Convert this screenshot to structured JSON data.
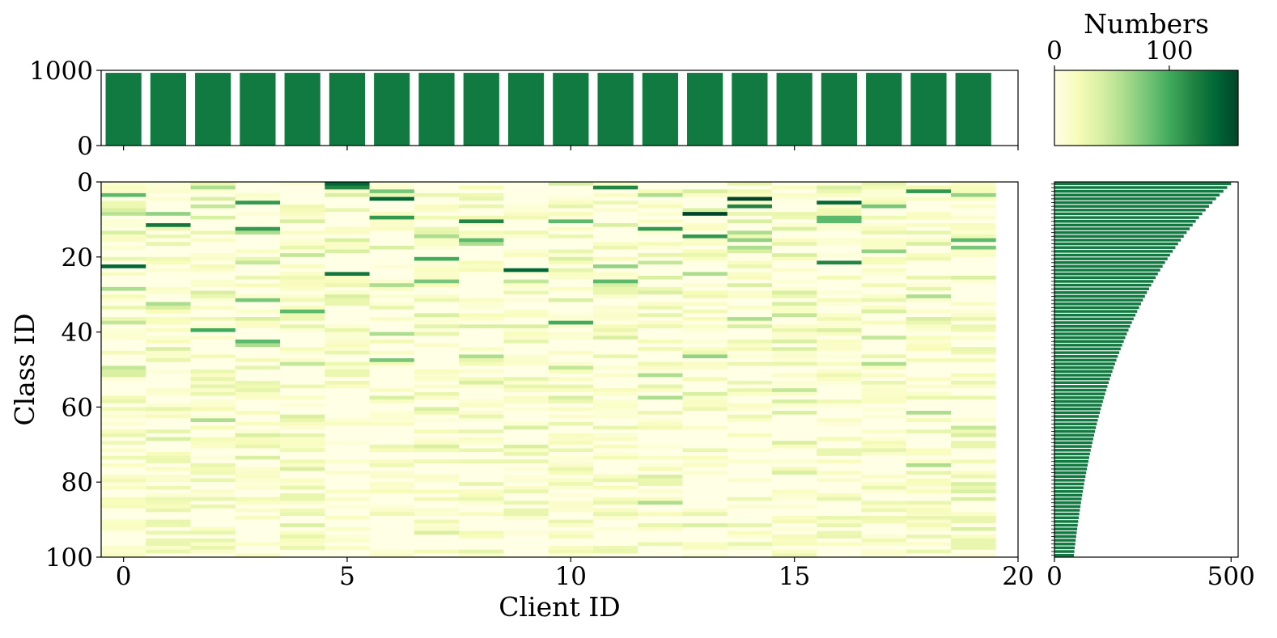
{
  "chart_data": [
    {
      "type": "bar",
      "role": "top-marginal",
      "categories": [
        0,
        1,
        2,
        3,
        4,
        5,
        6,
        7,
        8,
        9,
        10,
        11,
        12,
        13,
        14,
        15,
        16,
        17,
        18,
        19
      ],
      "values": [
        967,
        967,
        967,
        967,
        967,
        967,
        967,
        967,
        967,
        967,
        967,
        967,
        967,
        967,
        967,
        967,
        967,
        967,
        967,
        967
      ],
      "ylim": [
        0,
        1000
      ],
      "yticks": [
        0,
        1000
      ],
      "xlim": [
        -0.5,
        20
      ],
      "color": "#117a41"
    },
    {
      "type": "heatmap",
      "role": "main",
      "xlabel": "Client ID",
      "ylabel": "Class ID",
      "xticks": [
        0,
        5,
        10,
        15,
        20
      ],
      "yticks": [
        0,
        20,
        40,
        60,
        80,
        100
      ],
      "xlim": [
        -0.5,
        20
      ],
      "ylim": [
        100,
        0
      ],
      "n_clients": 20,
      "n_classes": 100,
      "colormap": "YlGn",
      "vmax": 160,
      "highlights": [
        {
          "client": 0,
          "classes": [
            3,
            7,
            8,
            13,
            22,
            28,
            37,
            49,
            50,
            51,
            58,
            67
          ],
          "values": [
            90,
            40,
            55,
            40,
            140,
            60,
            50,
            50,
            40,
            40,
            30,
            30
          ]
        },
        {
          "client": 1,
          "classes": [
            8,
            11,
            16,
            20,
            32,
            33,
            44,
            47,
            68,
            87,
            90,
            93,
            96,
            98
          ],
          "values": [
            70,
            130,
            30,
            25,
            60,
            40,
            40,
            30,
            40,
            30,
            30,
            30,
            30,
            30
          ]
        },
        {
          "client": 2,
          "classes": [
            1,
            4,
            6,
            9,
            13,
            29,
            39,
            52,
            56,
            63,
            75,
            79,
            84,
            86,
            93,
            95,
            97
          ],
          "values": [
            60,
            40,
            50,
            40,
            30,
            40,
            100,
            30,
            30,
            60,
            30,
            30,
            30,
            30,
            30,
            30,
            30
          ]
        },
        {
          "client": 3,
          "classes": [
            5,
            12,
            13,
            21,
            31,
            36,
            42,
            43,
            53,
            67,
            70,
            73
          ],
          "values": [
            110,
            110,
            60,
            50,
            80,
            40,
            90,
            60,
            30,
            40,
            30,
            40
          ]
        },
        {
          "client": 4,
          "classes": [
            10,
            17,
            19,
            34,
            48,
            62,
            76,
            81,
            84,
            88,
            91,
            94,
            97
          ],
          "values": [
            40,
            30,
            50,
            90,
            50,
            40,
            40,
            30,
            30,
            30,
            40,
            30,
            30
          ]
        },
        {
          "client": 5,
          "classes": [
            0,
            1,
            3,
            7,
            15,
            18,
            24,
            30,
            32,
            39,
            45
          ],
          "values": [
            140,
            120,
            40,
            30,
            40,
            40,
            130,
            40,
            30,
            30,
            30
          ]
        },
        {
          "client": 6,
          "classes": [
            2,
            4,
            9,
            17,
            27,
            33,
            40,
            47,
            57
          ],
          "values": [
            80,
            140,
            110,
            40,
            60,
            30,
            60,
            80,
            40
          ]
        },
        {
          "client": 7,
          "classes": [
            3,
            14,
            20,
            26,
            35,
            56,
            60,
            70,
            93
          ],
          "values": [
            30,
            60,
            100,
            80,
            40,
            30,
            40,
            40,
            40
          ]
        },
        {
          "client": 8,
          "classes": [
            6,
            10,
            15,
            16,
            38,
            46,
            53,
            66,
            71
          ],
          "values": [
            30,
            120,
            90,
            60,
            40,
            60,
            40,
            30,
            30
          ]
        },
        {
          "client": 9,
          "classes": [
            23,
            26,
            38,
            54,
            65,
            70,
            72,
            82,
            85,
            88
          ],
          "values": [
            140,
            50,
            40,
            30,
            40,
            40,
            30,
            30,
            30,
            30
          ]
        },
        {
          "client": 10,
          "classes": [
            0,
            10,
            20,
            31,
            37,
            49,
            54,
            57,
            64,
            71,
            76
          ],
          "values": [
            40,
            90,
            40,
            40,
            100,
            50,
            30,
            40,
            30,
            30,
            30
          ]
        },
        {
          "client": 11,
          "classes": [
            1,
            11,
            22,
            26,
            27,
            41,
            46,
            65,
            79,
            88,
            98
          ],
          "values": [
            120,
            40,
            70,
            90,
            40,
            40,
            30,
            30,
            30,
            30,
            30
          ]
        },
        {
          "client": 12,
          "classes": [
            3,
            12,
            21,
            25,
            29,
            51,
            57,
            78,
            80,
            85,
            91
          ],
          "values": [
            60,
            110,
            50,
            40,
            40,
            60,
            60,
            40,
            30,
            60,
            30
          ]
        },
        {
          "client": 13,
          "classes": [
            2,
            7,
            8,
            14,
            24,
            46,
            56,
            71,
            88,
            91
          ],
          "values": [
            40,
            40,
            160,
            110,
            60,
            70,
            40,
            30,
            30,
            40
          ]
        },
        {
          "client": 14,
          "classes": [
            0,
            4,
            6,
            10,
            13,
            15,
            17,
            18,
            27,
            36,
            38
          ],
          "values": [
            30,
            170,
            120,
            40,
            60,
            70,
            60,
            40,
            40,
            60,
            40
          ]
        },
        {
          "client": 15,
          "classes": [
            8,
            12,
            19,
            29,
            32,
            35,
            42,
            44,
            55,
            58,
            61,
            69,
            77
          ],
          "values": [
            30,
            40,
            40,
            40,
            40,
            50,
            40,
            40,
            50,
            40,
            40,
            40,
            40
          ]
        },
        {
          "client": 16,
          "classes": [
            1,
            5,
            9,
            10,
            21,
            39,
            72,
            89,
            91,
            94
          ],
          "values": [
            40,
            140,
            90,
            90,
            120,
            40,
            30,
            30,
            30,
            30
          ]
        },
        {
          "client": 17,
          "classes": [
            6,
            13,
            18,
            31,
            34,
            41,
            46,
            48,
            53
          ],
          "values": [
            80,
            30,
            70,
            30,
            40,
            50,
            30,
            60,
            30
          ]
        },
        {
          "client": 18,
          "classes": [
            2,
            16,
            30,
            36,
            61,
            75,
            85
          ],
          "values": [
            110,
            40,
            60,
            40,
            60,
            60,
            30
          ]
        },
        {
          "client": 19,
          "classes": [
            3,
            15,
            17,
            25,
            44,
            65,
            67,
            69,
            80,
            82,
            84,
            90,
            92,
            95,
            97
          ],
          "values": [
            70,
            90,
            80,
            40,
            30,
            50,
            40,
            30,
            40,
            40,
            40,
            30,
            40,
            30,
            30
          ]
        }
      ]
    },
    {
      "type": "colorbar",
      "role": "legend",
      "title": "Numbers",
      "ticks": [
        0,
        100
      ],
      "range": [
        0,
        160
      ],
      "colormap": "YlGn"
    },
    {
      "type": "bar",
      "orientation": "horizontal",
      "role": "right-marginal",
      "categories": "class ids 0-99",
      "xlim": [
        0,
        520
      ],
      "xticks": [
        0,
        500
      ],
      "max_value": 500,
      "min_value": 55,
      "decay": "exponential",
      "color": "#117a41"
    }
  ]
}
